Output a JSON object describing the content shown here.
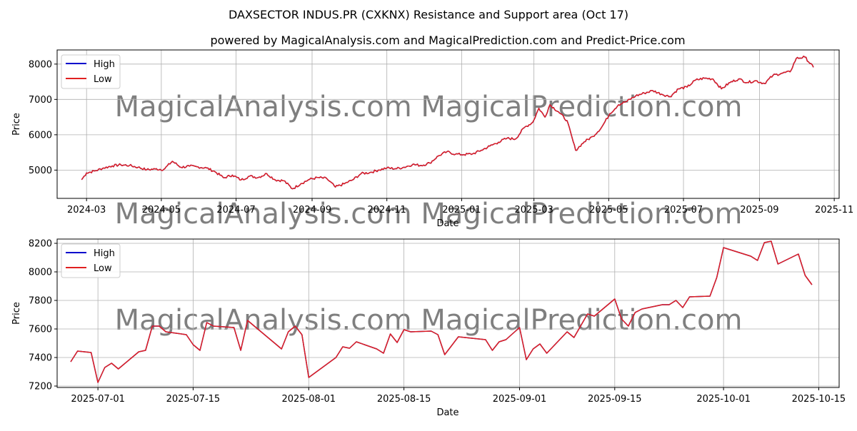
{
  "title": "DAXSECTOR INDUS.PR (CXKNX) Resistance and Support area (Oct 17)",
  "subtitle": "powered by MagicalAnalysis.com and MagicalPrediction.com and Predict-Price.com",
  "watermark": "MagicalAnalysis.com    MagicalPrediction.com",
  "colors": {
    "high": "#0000cc",
    "low": "#e02020",
    "grid": "#b0b0b0"
  },
  "chart_data": [
    {
      "type": "line",
      "xlabel": "Date",
      "ylabel": "Price",
      "x_start": "2024-02-26",
      "x_end": "2025-10-15",
      "xlim": [
        "2024-02-06",
        "2025-11-05"
      ],
      "ylim": [
        4200,
        8400
      ],
      "yticks": [
        5000,
        6000,
        7000,
        8000
      ],
      "xticks": [
        {
          "date": "2024-03-01",
          "label": "2024-03"
        },
        {
          "date": "2024-05-01",
          "label": "2024-05"
        },
        {
          "date": "2024-07-01",
          "label": "2024-07"
        },
        {
          "date": "2024-09-01",
          "label": "2024-09"
        },
        {
          "date": "2024-11-01",
          "label": "2024-11"
        },
        {
          "date": "2025-01-01",
          "label": "2025-01"
        },
        {
          "date": "2025-03-01",
          "label": "2025-03"
        },
        {
          "date": "2025-05-01",
          "label": "2025-05"
        },
        {
          "date": "2025-07-01",
          "label": "2025-07"
        },
        {
          "date": "2025-09-01",
          "label": "2025-09"
        },
        {
          "date": "2025-11-01",
          "label": "2025-11"
        }
      ],
      "grid": true,
      "legend": "top-left",
      "series": [
        {
          "name": "High",
          "color": "#0000cc"
        },
        {
          "name": "Low",
          "color": "#e02020"
        }
      ],
      "anchors": [
        [
          "2024-02-26",
          4730
        ],
        [
          "2024-03-01",
          4920
        ],
        [
          "2024-03-08",
          4980
        ],
        [
          "2024-03-15",
          5060
        ],
        [
          "2024-03-22",
          5120
        ],
        [
          "2024-03-29",
          5150
        ],
        [
          "2024-04-05",
          5130
        ],
        [
          "2024-04-12",
          5080
        ],
        [
          "2024-04-19",
          5010
        ],
        [
          "2024-04-26",
          5030
        ],
        [
          "2024-05-03",
          5020
        ],
        [
          "2024-05-10",
          5250
        ],
        [
          "2024-05-17",
          5080
        ],
        [
          "2024-05-24",
          5110
        ],
        [
          "2024-05-31",
          5090
        ],
        [
          "2024-06-07",
          5060
        ],
        [
          "2024-06-14",
          4950
        ],
        [
          "2024-06-21",
          4780
        ],
        [
          "2024-06-28",
          4860
        ],
        [
          "2024-07-05",
          4720
        ],
        [
          "2024-07-12",
          4830
        ],
        [
          "2024-07-19",
          4790
        ],
        [
          "2024-07-26",
          4900
        ],
        [
          "2024-08-02",
          4720
        ],
        [
          "2024-08-09",
          4700
        ],
        [
          "2024-08-16",
          4470
        ],
        [
          "2024-08-23",
          4620
        ],
        [
          "2024-08-30",
          4740
        ],
        [
          "2024-09-06",
          4790
        ],
        [
          "2024-09-13",
          4760
        ],
        [
          "2024-09-20",
          4520
        ],
        [
          "2024-09-27",
          4610
        ],
        [
          "2024-10-04",
          4720
        ],
        [
          "2024-10-11",
          4900
        ],
        [
          "2024-10-18",
          4930
        ],
        [
          "2024-10-25",
          5000
        ],
        [
          "2024-11-01",
          5060
        ],
        [
          "2024-11-08",
          5040
        ],
        [
          "2024-11-15",
          5080
        ],
        [
          "2024-11-22",
          5160
        ],
        [
          "2024-11-29",
          5130
        ],
        [
          "2024-12-06",
          5200
        ],
        [
          "2024-12-13",
          5400
        ],
        [
          "2024-12-20",
          5520
        ],
        [
          "2024-12-27",
          5450
        ],
        [
          "2025-01-03",
          5440
        ],
        [
          "2025-01-10",
          5460
        ],
        [
          "2025-01-17",
          5560
        ],
        [
          "2025-01-24",
          5680
        ],
        [
          "2025-01-31",
          5790
        ],
        [
          "2025-02-07",
          5900
        ],
        [
          "2025-02-14",
          5880
        ],
        [
          "2025-02-21",
          6200
        ],
        [
          "2025-02-28",
          6350
        ],
        [
          "2025-03-05",
          6750
        ],
        [
          "2025-03-10",
          6500
        ],
        [
          "2025-03-14",
          6850
        ],
        [
          "2025-03-21",
          6650
        ],
        [
          "2025-03-28",
          6400
        ],
        [
          "2025-04-04",
          5560
        ],
        [
          "2025-04-11",
          5800
        ],
        [
          "2025-04-18",
          5950
        ],
        [
          "2025-04-25",
          6200
        ],
        [
          "2025-05-02",
          6600
        ],
        [
          "2025-05-09",
          6850
        ],
        [
          "2025-05-16",
          6950
        ],
        [
          "2025-05-23",
          7100
        ],
        [
          "2025-05-30",
          7180
        ],
        [
          "2025-06-06",
          7250
        ],
        [
          "2025-06-13",
          7150
        ],
        [
          "2025-06-20",
          7080
        ],
        [
          "2025-06-27",
          7300
        ],
        [
          "2025-07-04",
          7350
        ],
        [
          "2025-07-11",
          7550
        ],
        [
          "2025-07-18",
          7600
        ],
        [
          "2025-07-25",
          7580
        ],
        [
          "2025-08-01",
          7300
        ],
        [
          "2025-08-08",
          7480
        ],
        [
          "2025-08-15",
          7580
        ],
        [
          "2025-08-22",
          7480
        ],
        [
          "2025-08-29",
          7530
        ],
        [
          "2025-09-05",
          7450
        ],
        [
          "2025-09-12",
          7680
        ],
        [
          "2025-09-19",
          7740
        ],
        [
          "2025-09-26",
          7780
        ],
        [
          "2025-10-01",
          8160
        ],
        [
          "2025-10-08",
          8200
        ],
        [
          "2025-10-15",
          7910
        ]
      ]
    },
    {
      "type": "line",
      "xlabel": "Date",
      "ylabel": "Price",
      "xlim": [
        "2025-06-25",
        "2025-10-18"
      ],
      "ylim": [
        7190,
        8230
      ],
      "yticks": [
        7200,
        7400,
        7600,
        7800,
        8000,
        8200
      ],
      "xticks": [
        {
          "date": "2025-07-01",
          "label": "2025-07-01"
        },
        {
          "date": "2025-07-15",
          "label": "2025-07-15"
        },
        {
          "date": "2025-08-01",
          "label": "2025-08-01"
        },
        {
          "date": "2025-08-15",
          "label": "2025-08-15"
        },
        {
          "date": "2025-09-01",
          "label": "2025-09-01"
        },
        {
          "date": "2025-09-15",
          "label": "2025-09-15"
        },
        {
          "date": "2025-10-01",
          "label": "2025-10-01"
        },
        {
          "date": "2025-10-15",
          "label": "2025-10-15"
        }
      ],
      "grid": true,
      "legend": "top-left",
      "series": [
        {
          "name": "High",
          "color": "#0000cc"
        },
        {
          "name": "Low",
          "color": "#e02020"
        }
      ],
      "points": [
        [
          "2025-06-27",
          7370
        ],
        [
          "2025-06-28",
          7445
        ],
        [
          "2025-06-30",
          7435
        ],
        [
          "2025-07-01",
          7225
        ],
        [
          "2025-07-02",
          7330
        ],
        [
          "2025-07-03",
          7360
        ],
        [
          "2025-07-04",
          7320
        ],
        [
          "2025-07-07",
          7440
        ],
        [
          "2025-07-08",
          7450
        ],
        [
          "2025-07-09",
          7620
        ],
        [
          "2025-07-10",
          7620
        ],
        [
          "2025-07-11",
          7580
        ],
        [
          "2025-07-14",
          7560
        ],
        [
          "2025-07-15",
          7490
        ],
        [
          "2025-07-16",
          7450
        ],
        [
          "2025-07-17",
          7645
        ],
        [
          "2025-07-18",
          7620
        ],
        [
          "2025-07-21",
          7610
        ],
        [
          "2025-07-22",
          7450
        ],
        [
          "2025-07-23",
          7660
        ],
        [
          "2025-07-24",
          7620
        ],
        [
          "2025-07-28",
          7460
        ],
        [
          "2025-07-29",
          7580
        ],
        [
          "2025-07-30",
          7620
        ],
        [
          "2025-07-31",
          7560
        ],
        [
          "2025-08-01",
          7260
        ],
        [
          "2025-08-05",
          7400
        ],
        [
          "2025-08-06",
          7475
        ],
        [
          "2025-08-07",
          7465
        ],
        [
          "2025-08-08",
          7510
        ],
        [
          "2025-08-11",
          7460
        ],
        [
          "2025-08-12",
          7430
        ],
        [
          "2025-08-13",
          7565
        ],
        [
          "2025-08-14",
          7505
        ],
        [
          "2025-08-15",
          7595
        ],
        [
          "2025-08-16",
          7580
        ],
        [
          "2025-08-19",
          7585
        ],
        [
          "2025-08-20",
          7560
        ],
        [
          "2025-08-21",
          7420
        ],
        [
          "2025-08-23",
          7545
        ],
        [
          "2025-08-27",
          7525
        ],
        [
          "2025-08-28",
          7450
        ],
        [
          "2025-08-29",
          7510
        ],
        [
          "2025-08-30",
          7525
        ],
        [
          "2025-09-01",
          7610
        ],
        [
          "2025-09-02",
          7385
        ],
        [
          "2025-09-03",
          7460
        ],
        [
          "2025-09-04",
          7495
        ],
        [
          "2025-09-05",
          7430
        ],
        [
          "2025-09-08",
          7580
        ],
        [
          "2025-09-09",
          7540
        ],
        [
          "2025-09-11",
          7705
        ],
        [
          "2025-09-12",
          7690
        ],
        [
          "2025-09-15",
          7810
        ],
        [
          "2025-09-16",
          7670
        ],
        [
          "2025-09-17",
          7620
        ],
        [
          "2025-09-18",
          7715
        ],
        [
          "2025-09-19",
          7740
        ],
        [
          "2025-09-22",
          7770
        ],
        [
          "2025-09-23",
          7770
        ],
        [
          "2025-09-24",
          7800
        ],
        [
          "2025-09-25",
          7750
        ],
        [
          "2025-09-26",
          7825
        ],
        [
          "2025-09-29",
          7830
        ],
        [
          "2025-09-30",
          7960
        ],
        [
          "2025-10-01",
          8170
        ],
        [
          "2025-10-05",
          8110
        ],
        [
          "2025-10-06",
          8080
        ],
        [
          "2025-10-07",
          8205
        ],
        [
          "2025-10-08",
          8215
        ],
        [
          "2025-10-09",
          8055
        ],
        [
          "2025-10-12",
          8125
        ],
        [
          "2025-10-13",
          7975
        ],
        [
          "2025-10-14",
          7910
        ]
      ]
    }
  ]
}
